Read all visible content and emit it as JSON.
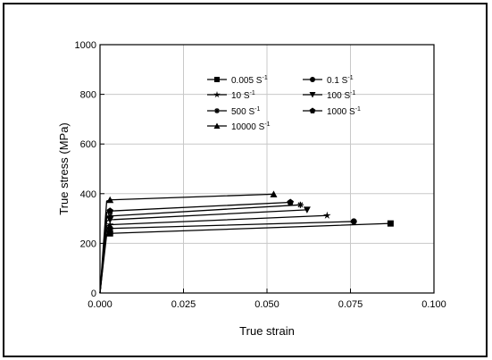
{
  "chart_data": {
    "type": "line",
    "title": "",
    "xlabel": "True strain",
    "ylabel": "True stress (MPa)",
    "xlim": [
      0.0,
      0.1
    ],
    "ylim": [
      0,
      1000
    ],
    "x_ticks": [
      "0.000",
      "0.025",
      "0.050",
      "0.075",
      "0.100"
    ],
    "y_ticks": [
      "0",
      "200",
      "400",
      "600",
      "800",
      "1000"
    ],
    "grid": true,
    "legend_position": "top-center",
    "series": [
      {
        "name": "0.005 S",
        "sup": "-1",
        "marker": "square",
        "points": [
          [
            0,
            0
          ],
          [
            0.001,
            120
          ],
          [
            0.002,
            235
          ],
          [
            0.003,
            240
          ],
          [
            0.087,
            280
          ]
        ]
      },
      {
        "name": "0.1 S",
        "sup": "-1",
        "marker": "circle",
        "points": [
          [
            0,
            0
          ],
          [
            0.001,
            130
          ],
          [
            0.002,
            255
          ],
          [
            0.003,
            260
          ],
          [
            0.076,
            288
          ]
        ]
      },
      {
        "name": "10 S",
        "sup": "-1",
        "marker": "star",
        "points": [
          [
            0,
            0
          ],
          [
            0.001,
            140
          ],
          [
            0.002,
            270
          ],
          [
            0.003,
            275
          ],
          [
            0.068,
            312
          ]
        ]
      },
      {
        "name": "100 S",
        "sup": "-1",
        "marker": "triangle-down",
        "points": [
          [
            0,
            0
          ],
          [
            0.001,
            150
          ],
          [
            0.002,
            290
          ],
          [
            0.003,
            295
          ],
          [
            0.062,
            335
          ]
        ]
      },
      {
        "name": "500 S",
        "sup": "-1",
        "marker": "asterisk",
        "points": [
          [
            0,
            0
          ],
          [
            0.001,
            160
          ],
          [
            0.002,
            305
          ],
          [
            0.003,
            310
          ],
          [
            0.06,
            355
          ]
        ]
      },
      {
        "name": "1000 S",
        "sup": "-1",
        "marker": "pentagon",
        "points": [
          [
            0,
            0
          ],
          [
            0.001,
            170
          ],
          [
            0.002,
            325
          ],
          [
            0.003,
            330
          ],
          [
            0.057,
            365
          ]
        ]
      },
      {
        "name": "10000 S",
        "sup": "-1",
        "marker": "triangle-up",
        "points": [
          [
            0,
            0
          ],
          [
            0.001,
            190
          ],
          [
            0.002,
            370
          ],
          [
            0.003,
            375
          ],
          [
            0.052,
            398
          ]
        ]
      }
    ]
  }
}
